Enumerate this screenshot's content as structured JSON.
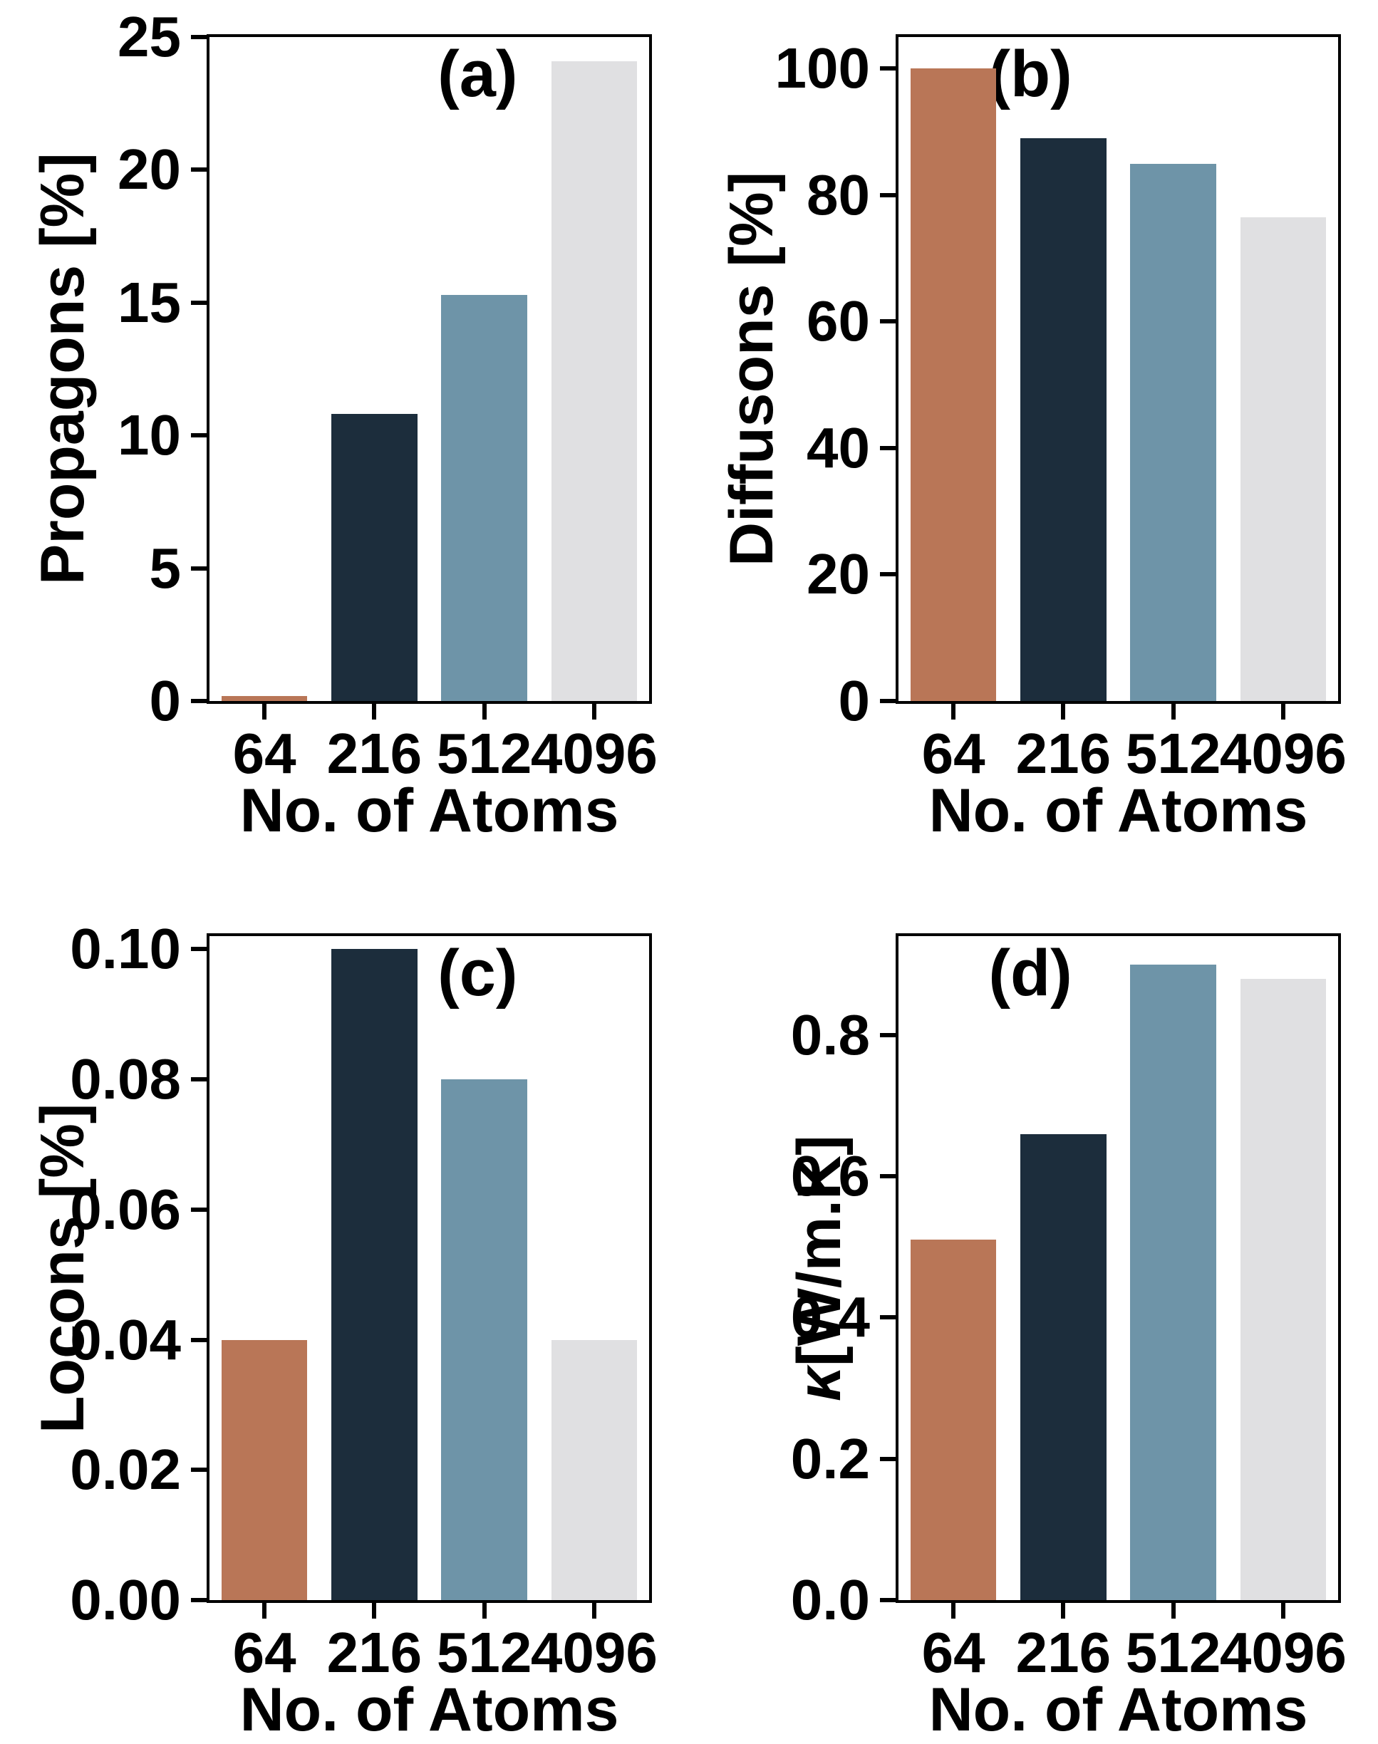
{
  "figure": {
    "background": "#ffffff",
    "spine_color": "#000000",
    "bar_colors": [
      "#b97657",
      "#1c2d3c",
      "#6e94a8",
      "#e0e0e2"
    ],
    "bar_color_names": [
      "terracotta-orange",
      "dark-navy",
      "steel-blue",
      "light-gray"
    ]
  },
  "chart_data": [
    {
      "type": "bar",
      "panel_label": "(a)",
      "ylabel": "Propagons [%]",
      "xlabel": "No. of Atoms",
      "categories": [
        "64",
        "216",
        "512",
        "4096"
      ],
      "values": [
        0.2,
        10.8,
        15.3,
        24.1
      ],
      "ylim": [
        0,
        25
      ],
      "yticks": [
        0,
        5,
        10,
        15,
        20,
        25
      ],
      "ytick_labels": [
        "0",
        "5",
        "10",
        "15",
        "20",
        "25"
      ],
      "grid": false,
      "legend": "none",
      "panel_label_pos": "right"
    },
    {
      "type": "bar",
      "panel_label": "(b)",
      "ylabel": "Diffusons [%]",
      "xlabel": "No. of Atoms",
      "categories": [
        "64",
        "216",
        "512",
        "4096"
      ],
      "values": [
        100,
        89,
        85,
        76.5
      ],
      "ylim": [
        0,
        105
      ],
      "yticks": [
        0,
        20,
        40,
        60,
        80,
        100
      ],
      "ytick_labels": [
        "0",
        "20",
        "40",
        "60",
        "80",
        "100"
      ],
      "grid": false,
      "legend": "none",
      "panel_label_pos": "left"
    },
    {
      "type": "bar",
      "panel_label": "(c)",
      "ylabel": "Locons [%]",
      "xlabel": "No. of Atoms",
      "categories": [
        "64",
        "216",
        "512",
        "4096"
      ],
      "values": [
        0.04,
        0.1,
        0.08,
        0.04
      ],
      "ylim": [
        0,
        0.102
      ],
      "yticks": [
        0,
        0.02,
        0.04,
        0.06,
        0.08,
        0.1
      ],
      "ytick_labels": [
        "0.00",
        "0.02",
        "0.04",
        "0.06",
        "0.08",
        "0.10"
      ],
      "grid": false,
      "legend": "none",
      "panel_label_pos": "right"
    },
    {
      "type": "bar",
      "panel_label": "(d)",
      "ylabel": "κ [W/m.K]",
      "xlabel": "No. of Atoms",
      "categories": [
        "64",
        "216",
        "512",
        "4096"
      ],
      "values": [
        0.51,
        0.66,
        0.9,
        0.88
      ],
      "ylim": [
        0,
        0.94
      ],
      "yticks": [
        0,
        0.2,
        0.4,
        0.6,
        0.8
      ],
      "ytick_labels": [
        "0.0",
        "0.2",
        "0.4",
        "0.6",
        "0.8"
      ],
      "grid": false,
      "legend": "none",
      "panel_label_pos": "left"
    }
  ]
}
